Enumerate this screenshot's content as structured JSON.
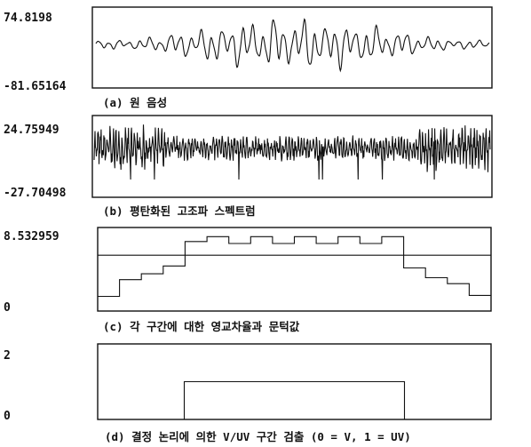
{
  "chart_data": [
    {
      "type": "line",
      "yticks": [
        "74.8198",
        "-81.65164"
      ],
      "ylim": [
        -81.65164,
        74.8198
      ],
      "caption": "(a) 원 음성"
    },
    {
      "type": "line",
      "yticks": [
        "24.75949",
        "-27.70498"
      ],
      "ylim": [
        -27.70498,
        24.75949
      ],
      "caption": "(b) 평탄화된 고조파 스펙트럼"
    },
    {
      "type": "line",
      "yticks": [
        "8.532959",
        "0"
      ],
      "ylim": [
        0,
        8.532959
      ],
      "caption": "(c) 각 구간에 대한 영교차율과 문턱값",
      "threshold": 5.7,
      "steps": [
        1.5,
        3.2,
        3.8,
        4.6,
        7.1,
        7.6,
        6.9,
        7.6,
        6.9,
        7.6,
        6.9,
        7.6,
        6.9,
        7.6,
        4.4,
        3.4,
        2.8,
        1.6
      ]
    },
    {
      "type": "line",
      "yticks": [
        "2",
        "0"
      ],
      "ylim": [
        0,
        2
      ],
      "caption": "(d) 결정 논리에 의한 V/UV 구간 검출 (0 = V, 1 = UV)",
      "decision": [
        {
          "x": 0.0,
          "y": 0
        },
        {
          "x": 0.22,
          "y": 1
        },
        {
          "x": 0.78,
          "y": 0
        }
      ]
    }
  ]
}
